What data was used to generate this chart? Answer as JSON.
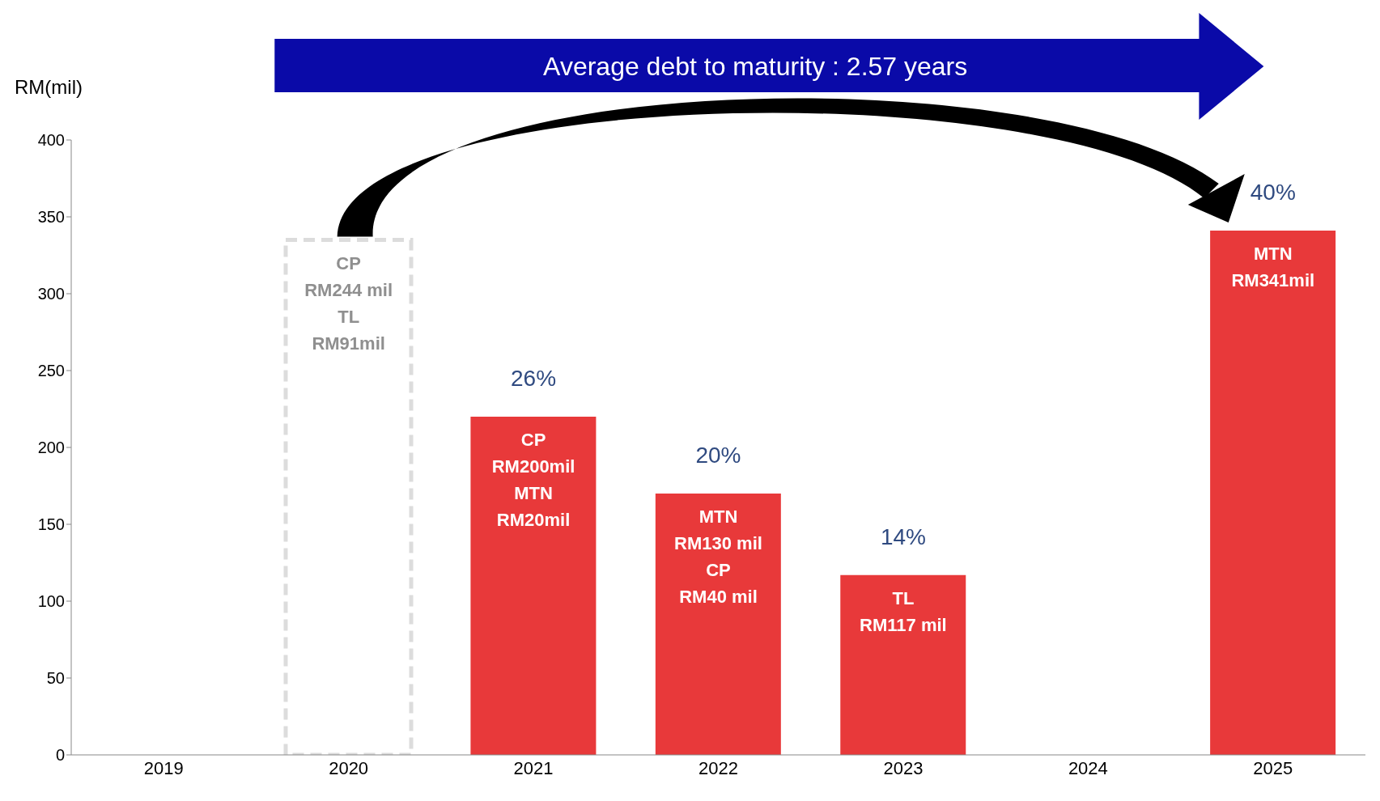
{
  "chart_data": {
    "type": "bar",
    "ylabel": "RM(mil)",
    "categories": [
      "2019",
      "2020",
      "2021",
      "2022",
      "2023",
      "2024",
      "2025"
    ],
    "stacked": true,
    "ylim": [
      0,
      400
    ],
    "yticks": [
      0,
      50,
      100,
      150,
      200,
      250,
      300,
      350,
      400
    ],
    "series": [
      {
        "color": "#dcdcdc",
        "line_style": "dashed",
        "values": [
          null,
          335,
          null,
          null,
          null,
          null,
          null
        ],
        "value_labels": [
          null,
          "CP\nRM244 mil\nTL\nRM91mil",
          null,
          null,
          null,
          null,
          null
        ]
      },
      {
        "color": "#e8393a",
        "values": [
          null,
          null,
          220,
          170,
          117,
          null,
          341
        ],
        "value_labels": [
          null,
          null,
          "CP\nRM200mil\nMTN\nRM20mil",
          "MTN\nRM130 mil\nCP\nRM40 mil",
          "TL\nRM117 mil",
          null,
          "MTN\nRM341mil"
        ]
      }
    ],
    "annotations": [
      "Average debt to maturity : 2.57 years",
      {
        "text": "26%",
        "x": "2021",
        "y": 220
      },
      {
        "text": "20%",
        "x": "2022",
        "y": 170
      },
      {
        "text": "14%",
        "x": "2023",
        "y": 117
      },
      {
        "text": "40%",
        "x": "2025",
        "y": 341
      }
    ]
  }
}
